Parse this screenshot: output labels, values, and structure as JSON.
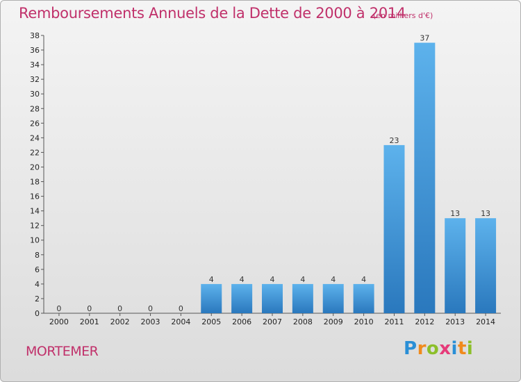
{
  "header": {
    "title": "Remboursements Annuels de la Dette de 2000 à 2014",
    "unit": "(en milliers d'€)"
  },
  "footer": {
    "place": "MORTEMER",
    "logo_letters": [
      "P",
      "r",
      "o",
      "x",
      "i",
      "t",
      "i"
    ],
    "logo_colors": [
      "#2a8fd6",
      "#f08a1c",
      "#8cbf2a",
      "#e63b7a",
      "#2a8fd6",
      "#f08a1c",
      "#8cbf2a"
    ]
  },
  "chart_data": {
    "type": "bar",
    "title": "Remboursements Annuels de la Dette de 2000 à 2014",
    "xlabel": "",
    "ylabel": "",
    "categories": [
      "2000",
      "2001",
      "2002",
      "2003",
      "2004",
      "2005",
      "2006",
      "2007",
      "2008",
      "2009",
      "2010",
      "2011",
      "2012",
      "2013",
      "2014"
    ],
    "values": [
      0,
      0,
      0,
      0,
      0,
      4,
      4,
      4,
      4,
      4,
      4,
      23,
      37,
      13,
      13
    ],
    "ylim": [
      0,
      38
    ],
    "yticks": [
      0,
      2,
      4,
      6,
      8,
      10,
      12,
      14,
      16,
      18,
      20,
      22,
      24,
      26,
      28,
      30,
      32,
      34,
      36,
      38
    ],
    "grid": false,
    "bar_color": "#3a8fd0"
  }
}
